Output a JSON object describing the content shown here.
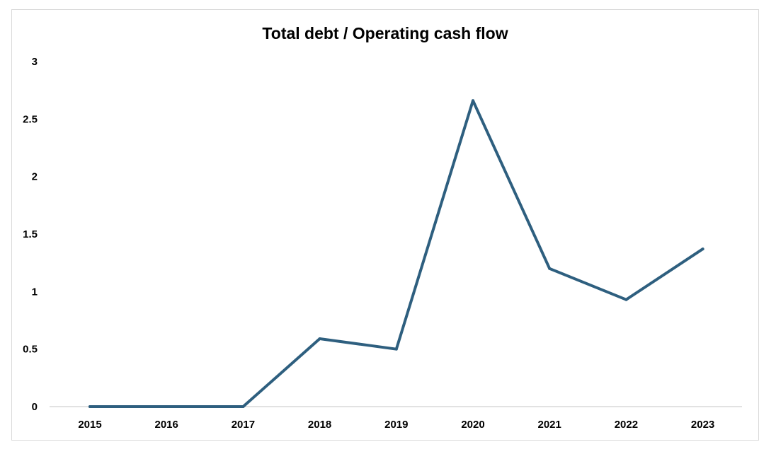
{
  "chart_data": {
    "type": "line",
    "title": "Total debt / Operating cash flow",
    "xlabel": "",
    "ylabel": "",
    "categories": [
      "2015",
      "2016",
      "2017",
      "2018",
      "2019",
      "2020",
      "2021",
      "2022",
      "2023"
    ],
    "series": [
      {
        "values": [
          0.0,
          0.0,
          0.0,
          0.59,
          0.5,
          2.66,
          1.2,
          0.93,
          1.37
        ],
        "color": "#2e5f7f"
      }
    ],
    "ylim": [
      0,
      3
    ],
    "yticks": [
      "0",
      "0.5",
      "1",
      "1.5",
      "2",
      "2.5",
      "3"
    ],
    "grid": false,
    "legend": "none"
  }
}
